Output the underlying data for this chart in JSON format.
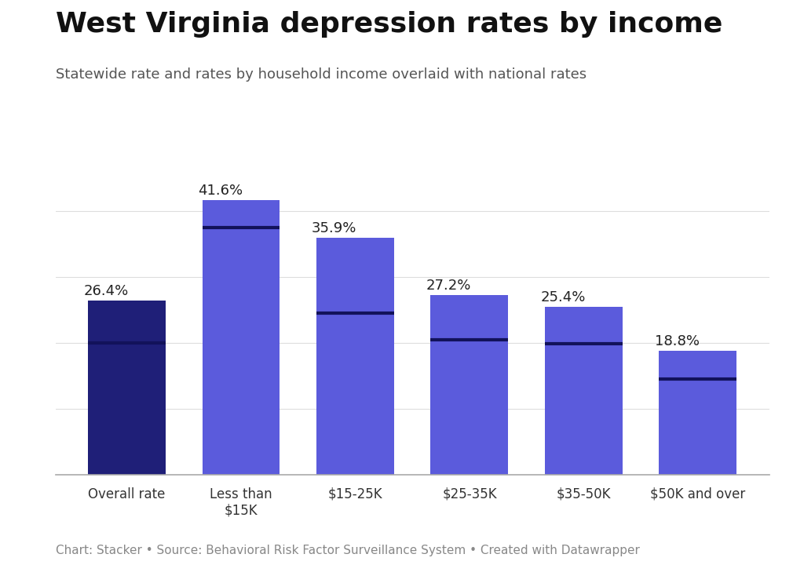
{
  "title": "West Virginia depression rates by income",
  "subtitle": "Statewide rate and rates by household income overlaid with national rates",
  "footnote": "Chart: Stacker • Source: Behavioral Risk Factor Surveillance System • Created with Datawrapper",
  "categories": [
    "Overall rate",
    "Less than\n$15K",
    "$15-25K",
    "$25-35K",
    "$35-50K",
    "$50K and over"
  ],
  "values": [
    26.4,
    41.6,
    35.9,
    27.2,
    25.4,
    18.8
  ],
  "bar_colors": [
    "#1f1f78",
    "#5b5bdc",
    "#5b5bdc",
    "#5b5bdc",
    "#5b5bdc",
    "#5b5bdc"
  ],
  "national_rates": [
    20.0,
    37.5,
    24.5,
    20.5,
    19.8,
    14.5
  ],
  "value_labels": [
    "26.4%",
    "41.6%",
    "35.9%",
    "27.2%",
    "25.4%",
    "18.8%"
  ],
  "ylim": [
    0,
    48
  ],
  "background_color": "#ffffff",
  "title_fontsize": 26,
  "subtitle_fontsize": 13,
  "label_fontsize": 13,
  "tick_fontsize": 12,
  "footnote_fontsize": 11
}
